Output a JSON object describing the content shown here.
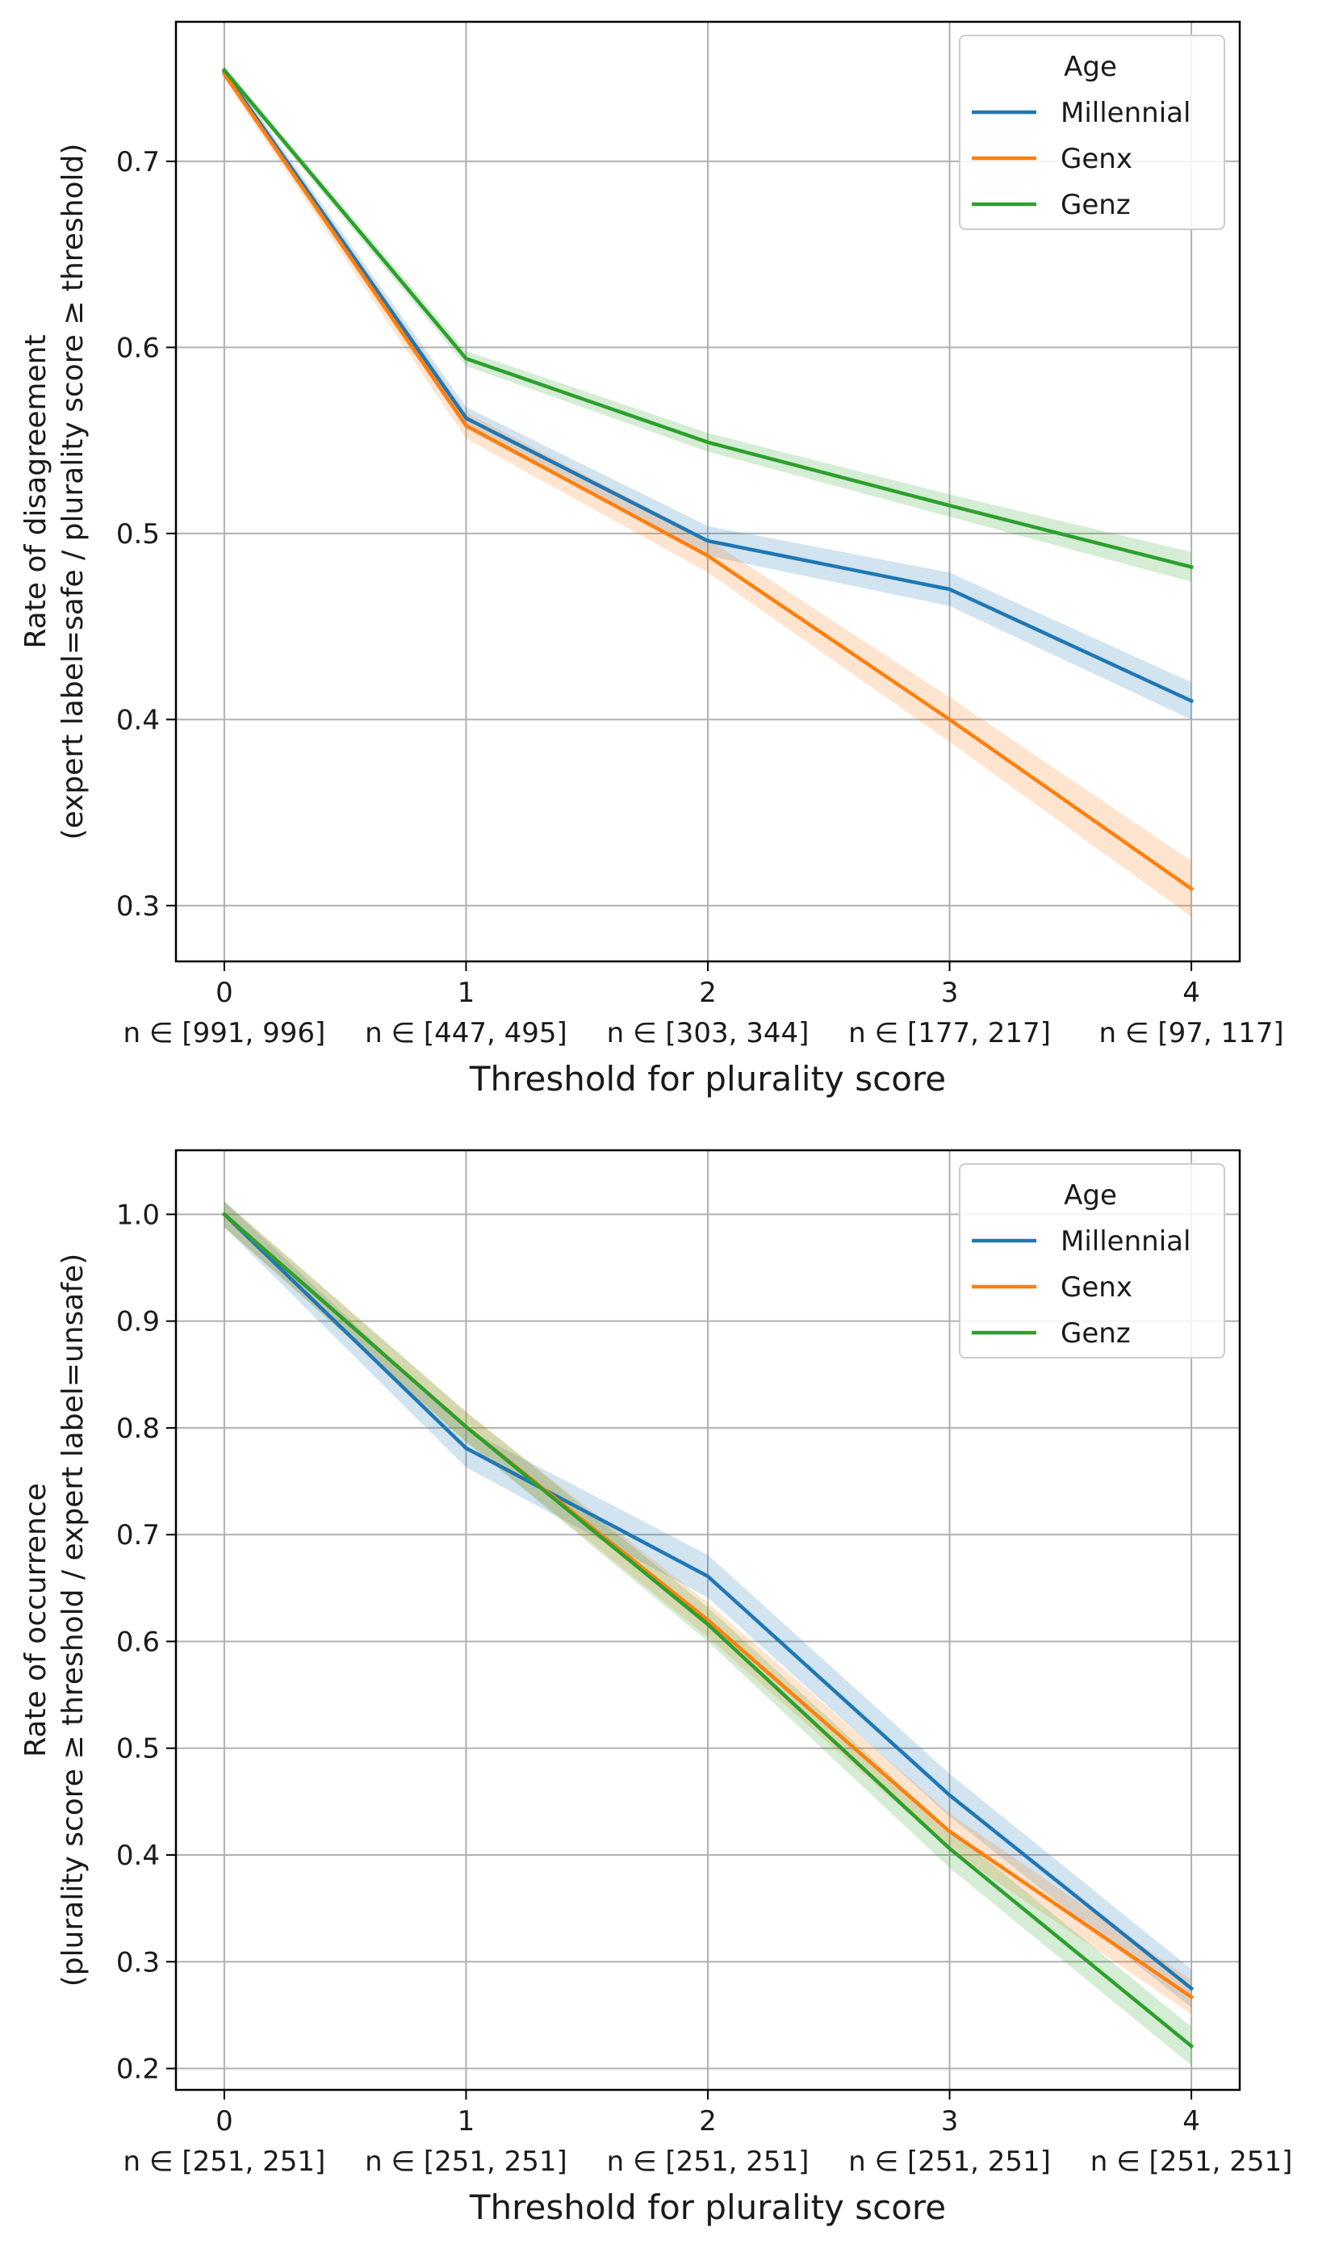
{
  "colors": {
    "millennial": "#1f77b4",
    "genx": "#ff7f0e",
    "genz": "#2ca02c",
    "grid": "#b0b0b0",
    "axis": "#000000",
    "legend_border": "#cccccc"
  },
  "chart_data": [
    {
      "type": "line",
      "ylabel_line1": "Rate of disagreement",
      "ylabel_line2": "(expert label=safe / plurality score ≥ threshold)",
      "xlabel": "Threshold for plurality score",
      "x": [
        0,
        1,
        2,
        3,
        4
      ],
      "xticks": [
        "0",
        "1",
        "2",
        "3",
        "4"
      ],
      "n_labels": [
        "n ∈ [991, 996]",
        "n ∈ [447, 495]",
        "n ∈ [303, 344]",
        "n ∈ [177, 217]",
        "n ∈ [97, 117]"
      ],
      "xlim": [
        -0.2,
        4.2
      ],
      "ylim": [
        0.27,
        0.775
      ],
      "yticks": [
        0.3,
        0.4,
        0.5,
        0.6,
        0.7
      ],
      "ytick_labels": [
        "0.3",
        "0.4",
        "0.5",
        "0.6",
        "0.7"
      ],
      "grid": true,
      "legend_title": "Age",
      "legend_position": "top-right",
      "series": [
        {
          "name": "Millennial",
          "key": "millennial",
          "values": [
            0.748,
            0.562,
            0.496,
            0.47,
            0.41
          ],
          "band": [
            0.003,
            0.006,
            0.008,
            0.009,
            0.01
          ]
        },
        {
          "name": "Genx",
          "key": "genx",
          "values": [
            0.747,
            0.558,
            0.488,
            0.4,
            0.309
          ],
          "band": [
            0.003,
            0.007,
            0.009,
            0.012,
            0.015
          ]
        },
        {
          "name": "Genz",
          "key": "genz",
          "values": [
            0.749,
            0.594,
            0.549,
            0.515,
            0.482
          ],
          "band": [
            0.002,
            0.004,
            0.005,
            0.006,
            0.008
          ]
        }
      ]
    },
    {
      "type": "line",
      "ylabel_line1": "Rate of occurrence",
      "ylabel_line2": "(plurality score ≥ threshold / expert label=unsafe)",
      "xlabel": "Threshold for plurality score",
      "x": [
        0,
        1,
        2,
        3,
        4
      ],
      "xticks": [
        "0",
        "1",
        "2",
        "3",
        "4"
      ],
      "n_labels": [
        "n ∈ [251, 251]",
        "n ∈ [251, 251]",
        "n ∈ [251, 251]",
        "n ∈ [251, 251]",
        "n ∈ [251, 251]"
      ],
      "xlim": [
        -0.2,
        4.2
      ],
      "ylim": [
        0.18,
        1.06
      ],
      "yticks": [
        0.2,
        0.3,
        0.4,
        0.5,
        0.6,
        0.7,
        0.8,
        0.9,
        1.0
      ],
      "ytick_labels": [
        "0.2",
        "0.3",
        "0.4",
        "0.5",
        "0.6",
        "0.7",
        "0.8",
        "0.9",
        "1.0"
      ],
      "grid": true,
      "legend_title": "Age",
      "legend_position": "top-right",
      "series": [
        {
          "name": "Millennial",
          "key": "millennial",
          "values": [
            1.0,
            0.781,
            0.661,
            0.456,
            0.275
          ],
          "band": [
            0.012,
            0.018,
            0.02,
            0.02,
            0.018
          ]
        },
        {
          "name": "Genx",
          "key": "genx",
          "values": [
            1.0,
            0.801,
            0.62,
            0.422,
            0.267
          ],
          "band": [
            0.012,
            0.014,
            0.016,
            0.017,
            0.016
          ]
        },
        {
          "name": "Genz",
          "key": "genz",
          "values": [
            1.0,
            0.801,
            0.616,
            0.406,
            0.221
          ],
          "band": [
            0.012,
            0.014,
            0.016,
            0.018,
            0.018
          ]
        }
      ]
    }
  ]
}
